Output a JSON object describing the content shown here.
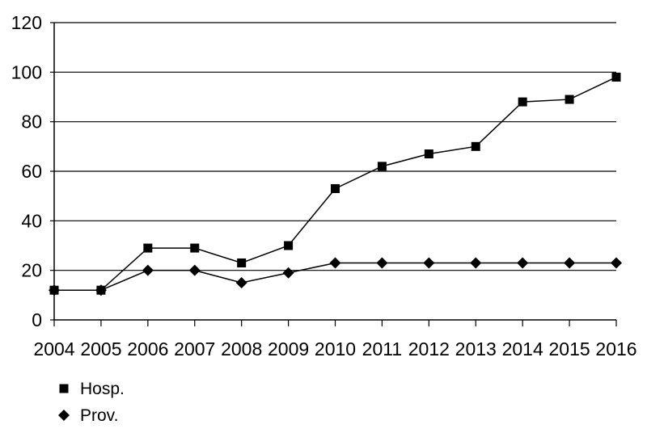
{
  "chart_data": {
    "type": "line",
    "title": "",
    "xlabel": "",
    "ylabel": "",
    "x": [
      "2004",
      "2005",
      "2006",
      "2007",
      "2008",
      "2009",
      "2010",
      "2011",
      "2012",
      "2013",
      "2014",
      "2015",
      "2016"
    ],
    "ylim": [
      0,
      120
    ],
    "yticks": [
      "0",
      "20",
      "40",
      "60",
      "80",
      "100",
      "120"
    ],
    "grid": "horizontal",
    "legend_position": "bottom-left",
    "series": [
      {
        "name": "Hosp.",
        "marker": "square",
        "values": [
          12,
          12,
          29,
          29,
          23,
          30,
          53,
          62,
          67,
          70,
          88,
          89,
          98
        ]
      },
      {
        "name": "Prov.",
        "marker": "diamond",
        "values": [
          12,
          12,
          20,
          20,
          15,
          19,
          23,
          23,
          23,
          23,
          23,
          23,
          23
        ]
      }
    ],
    "colors": {
      "line": "#000000",
      "grid": "#000000"
    }
  }
}
